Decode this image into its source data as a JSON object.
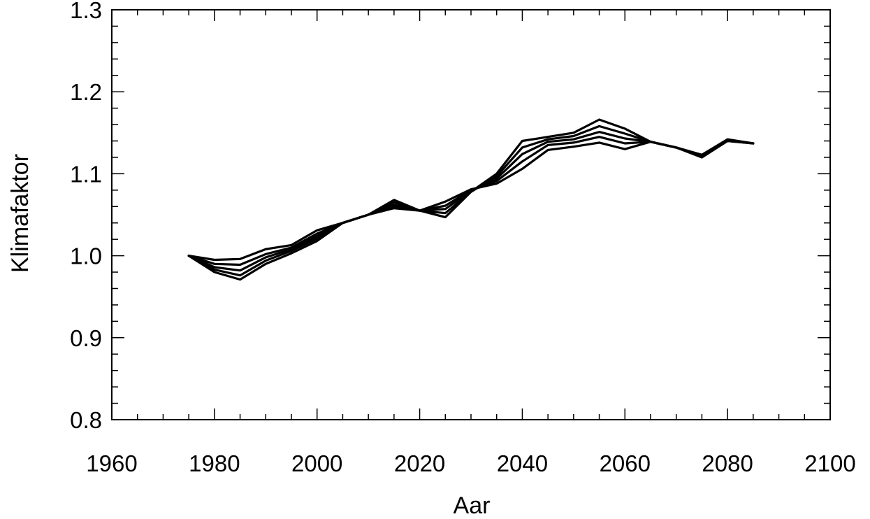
{
  "chart_data": {
    "type": "line",
    "title": "",
    "xlabel": "Aar",
    "ylabel": "Klimafaktor",
    "xlim": [
      1960,
      2100
    ],
    "ylim": [
      0.8,
      1.3
    ],
    "xticks": [
      1960,
      1980,
      2000,
      2020,
      2040,
      2060,
      2080,
      2100
    ],
    "xtick_labels": [
      "1960",
      "1980",
      "2000",
      "2020",
      "2040",
      "2060",
      "2080",
      "2100"
    ],
    "yticks": [
      0.8,
      0.9,
      1.0,
      1.1,
      1.2,
      1.3
    ],
    "ytick_labels": [
      "0.8",
      "0.9",
      "1.0",
      "1.1",
      "1.2",
      "1.3"
    ],
    "x_minor_step": 5,
    "y_minor_step": 0.02,
    "grid": false,
    "legend": "none",
    "line_color": "#000000",
    "x": [
      1975,
      1980,
      1985,
      1990,
      1995,
      2000,
      2005,
      2010,
      2015,
      2020,
      2025,
      2030,
      2035,
      2040,
      2045,
      2050,
      2055,
      2060,
      2065,
      2070,
      2075,
      2080,
      2085
    ],
    "series": [
      {
        "values": [
          1.0,
          0.98,
          0.971,
          0.99,
          1.003,
          1.018,
          1.04,
          1.05,
          1.068,
          1.055,
          1.047,
          1.078,
          1.1,
          1.14,
          1.145,
          1.15,
          1.166,
          1.155,
          1.139,
          1.132,
          1.123,
          1.142,
          1.137
        ]
      },
      {
        "values": [
          1.0,
          0.983,
          0.976,
          0.994,
          1.006,
          1.021,
          1.04,
          1.05,
          1.065,
          1.055,
          1.052,
          1.078,
          1.097,
          1.132,
          1.142,
          1.146,
          1.158,
          1.149,
          1.139,
          1.132,
          1.123,
          1.141,
          1.137
        ]
      },
      {
        "values": [
          1.0,
          0.986,
          0.982,
          0.998,
          1.008,
          1.024,
          1.04,
          1.05,
          1.062,
          1.055,
          1.057,
          1.079,
          1.094,
          1.124,
          1.139,
          1.142,
          1.151,
          1.143,
          1.139,
          1.132,
          1.122,
          1.141,
          1.137
        ]
      },
      {
        "values": [
          1.0,
          0.99,
          0.989,
          1.002,
          1.01,
          1.027,
          1.04,
          1.05,
          1.06,
          1.055,
          1.061,
          1.08,
          1.091,
          1.115,
          1.135,
          1.138,
          1.145,
          1.137,
          1.139,
          1.132,
          1.121,
          1.14,
          1.137
        ]
      },
      {
        "values": [
          1.0,
          0.995,
          0.996,
          1.008,
          1.013,
          1.031,
          1.04,
          1.05,
          1.058,
          1.055,
          1.066,
          1.081,
          1.088,
          1.106,
          1.129,
          1.133,
          1.138,
          1.13,
          1.139,
          1.132,
          1.12,
          1.14,
          1.137
        ]
      }
    ]
  }
}
